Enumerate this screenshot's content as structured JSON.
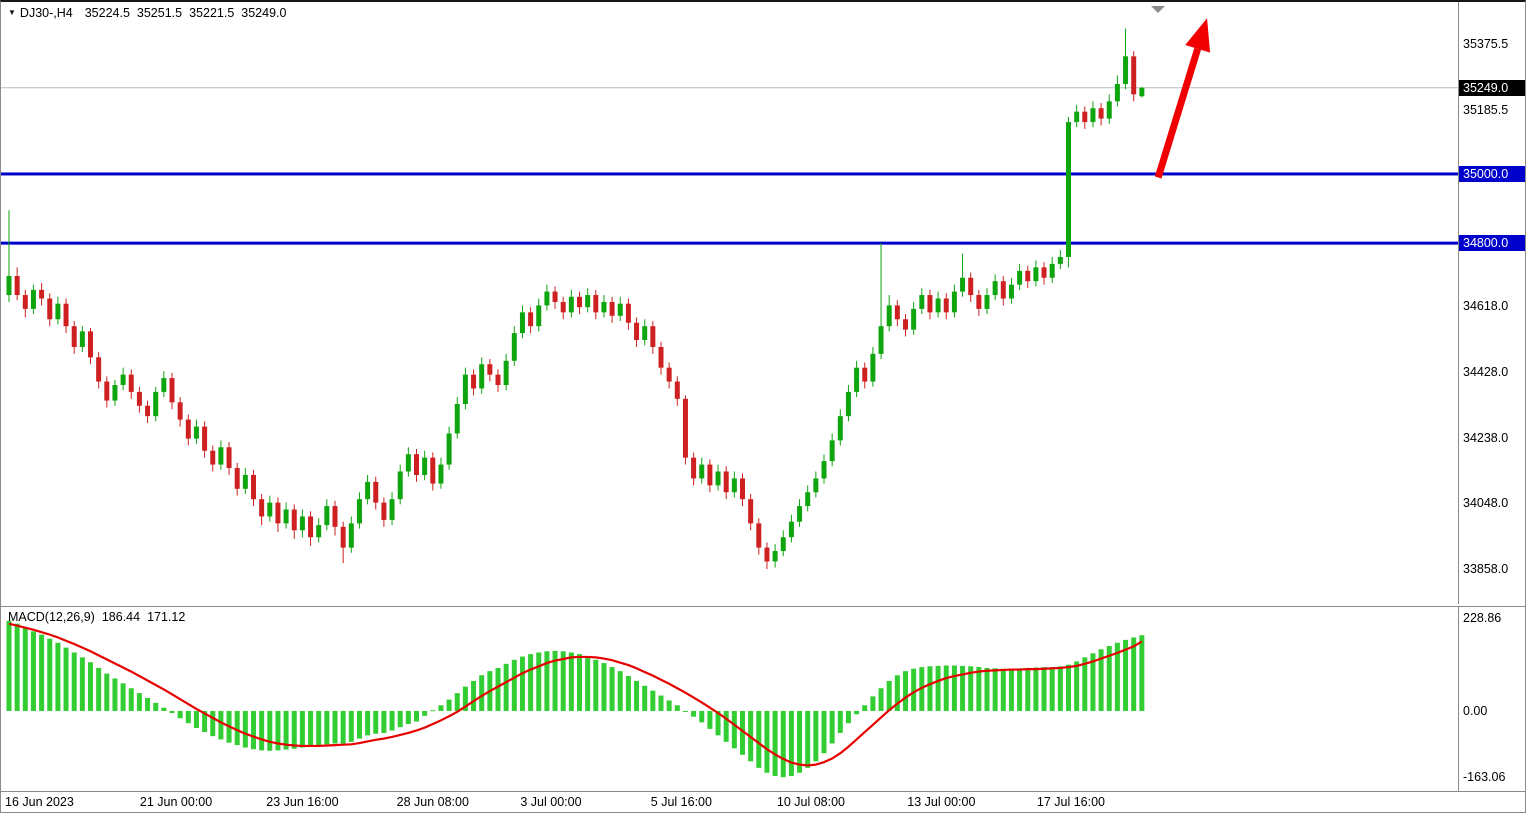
{
  "header": {
    "expand_icon": "▼",
    "instrument": "DJ30-,H4",
    "open": "35224.5",
    "high": "35251.5",
    "low": "35221.5",
    "close": "35249.0"
  },
  "colors": {
    "up": "#0FA50F",
    "down": "#CE2020",
    "macd_bar": "#32CD32",
    "signal": "#E60000",
    "level": "#0000CD",
    "arrow": "#F00000",
    "current_line": "#B8BEC4",
    "current_box_bg": "#000000",
    "shift_marker": "#8C8C8C",
    "axis_text": "#000000"
  },
  "price_axis": {
    "labels": [
      {
        "text": "35375.5",
        "value": 35375.5
      },
      {
        "text": "35185.5",
        "value": 35185.5
      },
      {
        "text": "34618.0",
        "value": 34618.0
      },
      {
        "text": "34428.0",
        "value": 34428.0
      },
      {
        "text": "34238.0",
        "value": 34238.0
      },
      {
        "text": "34048.0",
        "value": 34048.0
      },
      {
        "text": "33858.0",
        "value": 33858.0
      }
    ],
    "current": {
      "text": "35249.0",
      "value": 35249.0
    },
    "levels": [
      {
        "text": "35000.0",
        "value": 35000.0
      },
      {
        "text": "34800.0",
        "value": 34800.0
      }
    ]
  },
  "macd_panel": {
    "label": "MACD(12,26,9)",
    "macd_value": "186.44",
    "signal_value": "171.12",
    "axis": [
      {
        "text": "228.86",
        "value": 228.86
      },
      {
        "text": "0.00",
        "value": 0
      },
      {
        "text": "-163.06",
        "value": -163.06
      }
    ]
  },
  "chart_data": [
    {
      "type": "candlestick",
      "symbol": "DJ30-",
      "timeframe": "H4",
      "ylim": [
        33757,
        35497
      ],
      "bar_start_x": 8,
      "bar_spacing": 8.15,
      "current_price": 35249.0,
      "levels": [
        35000.0,
        34800.0
      ],
      "annotations": [
        {
          "type": "arrow",
          "color": "#F00000",
          "from_bar": 141,
          "from_price": 34990,
          "to_bar": 147,
          "to_price": 35450
        }
      ],
      "x_ticks": [
        {
          "label": "16 Jun 2023",
          "bar": 0
        },
        {
          "label": "21 Jun 00:00",
          "bar": 20.5
        },
        {
          "label": "23 Jun 16:00",
          "bar": 36
        },
        {
          "label": "28 Jun 08:00",
          "bar": 52
        },
        {
          "label": "3 Jul 00:00",
          "bar": 66.5
        },
        {
          "label": "5 Jul 16:00",
          "bar": 82.5
        },
        {
          "label": "10 Jul 08:00",
          "bar": 98.4
        },
        {
          "label": "13 Jul 00:00",
          "bar": 114.4
        },
        {
          "label": "17 Jul 16:00",
          "bar": 130.3
        }
      ],
      "candles": [
        [
          34650,
          34895,
          34630,
          34705
        ],
        [
          34705,
          34730,
          34635,
          34650
        ],
        [
          34650,
          34665,
          34585,
          34610
        ],
        [
          34610,
          34680,
          34595,
          34665
        ],
        [
          34665,
          34685,
          34620,
          34640
        ],
        [
          34640,
          34655,
          34560,
          34580
        ],
        [
          34580,
          34645,
          34565,
          34625
        ],
        [
          34625,
          34640,
          34540,
          34560
        ],
        [
          34560,
          34575,
          34480,
          34500
        ],
        [
          34500,
          34560,
          34485,
          34545
        ],
        [
          34545,
          34555,
          34450,
          34470
        ],
        [
          34470,
          34485,
          34380,
          34400
        ],
        [
          34400,
          34415,
          34325,
          34345
        ],
        [
          34345,
          34405,
          34330,
          34390
        ],
        [
          34390,
          34440,
          34375,
          34420
        ],
        [
          34420,
          34435,
          34350,
          34370
        ],
        [
          34370,
          34385,
          34310,
          34330
        ],
        [
          34330,
          34345,
          34280,
          34300
        ],
        [
          34300,
          34385,
          34285,
          34370
        ],
        [
          34370,
          34430,
          34355,
          34410
        ],
        [
          34410,
          34425,
          34320,
          34340
        ],
        [
          34340,
          34355,
          34270,
          34290
        ],
        [
          34290,
          34305,
          34215,
          34235
        ],
        [
          34235,
          34290,
          34220,
          34270
        ],
        [
          34270,
          34285,
          34180,
          34200
        ],
        [
          34200,
          34215,
          34140,
          34160
        ],
        [
          34160,
          34230,
          34145,
          34210
        ],
        [
          34210,
          34225,
          34130,
          34150
        ],
        [
          34150,
          34165,
          34070,
          34090
        ],
        [
          34090,
          34150,
          34075,
          34130
        ],
        [
          34130,
          34145,
          34040,
          34060
        ],
        [
          34060,
          34075,
          33985,
          34010
        ],
        [
          34010,
          34070,
          33995,
          34050
        ],
        [
          34050,
          34065,
          33965,
          33990
        ],
        [
          33990,
          34050,
          33975,
          34030
        ],
        [
          34030,
          34045,
          33945,
          33970
        ],
        [
          33970,
          34030,
          33950,
          34010
        ],
        [
          34010,
          34025,
          33925,
          33950
        ],
        [
          33950,
          34005,
          33935,
          33985
        ],
        [
          33985,
          34060,
          33970,
          34040
        ],
        [
          34040,
          34055,
          33955,
          33980
        ],
        [
          33980,
          33995,
          33875,
          33920
        ],
        [
          33920,
          34010,
          33905,
          33990
        ],
        [
          33990,
          34080,
          33975,
          34060
        ],
        [
          34060,
          34130,
          34045,
          34110
        ],
        [
          34110,
          34125,
          34030,
          34050
        ],
        [
          34050,
          34065,
          33980,
          34000
        ],
        [
          34000,
          34080,
          33985,
          34060
        ],
        [
          34060,
          34160,
          34045,
          34140
        ],
        [
          34140,
          34210,
          34125,
          34190
        ],
        [
          34190,
          34205,
          34110,
          34130
        ],
        [
          34130,
          34200,
          34115,
          34180
        ],
        [
          34180,
          34195,
          34085,
          34105
        ],
        [
          34105,
          34180,
          34090,
          34160
        ],
        [
          34160,
          34270,
          34145,
          34250
        ],
        [
          34250,
          34355,
          34235,
          34335
        ],
        [
          34335,
          34440,
          34320,
          34420
        ],
        [
          34420,
          34435,
          34360,
          34380
        ],
        [
          34380,
          34470,
          34365,
          34450
        ],
        [
          34450,
          34465,
          34400,
          34420
        ],
        [
          34420,
          34435,
          34370,
          34390
        ],
        [
          34390,
          34480,
          34375,
          34460
        ],
        [
          34460,
          34560,
          34445,
          34540
        ],
        [
          34540,
          34620,
          34525,
          34600
        ],
        [
          34600,
          34615,
          34540,
          34560
        ],
        [
          34560,
          34640,
          34545,
          34620
        ],
        [
          34620,
          34680,
          34605,
          34660
        ],
        [
          34660,
          34675,
          34610,
          34630
        ],
        [
          34630,
          34645,
          34580,
          34600
        ],
        [
          34600,
          34665,
          34585,
          34645
        ],
        [
          34645,
          34660,
          34595,
          34615
        ],
        [
          34615,
          34670,
          34600,
          34650
        ],
        [
          34650,
          34665,
          34580,
          34600
        ],
        [
          34600,
          34650,
          34585,
          34630
        ],
        [
          34630,
          34645,
          34570,
          34590
        ],
        [
          34590,
          34645,
          34575,
          34625
        ],
        [
          34625,
          34640,
          34550,
          34570
        ],
        [
          34570,
          34585,
          34500,
          34520
        ],
        [
          34520,
          34580,
          34505,
          34560
        ],
        [
          34560,
          34575,
          34480,
          34500
        ],
        [
          34500,
          34515,
          34420,
          34440
        ],
        [
          34440,
          34455,
          34380,
          34400
        ],
        [
          34400,
          34415,
          34330,
          34350
        ],
        [
          34350,
          34360,
          34160,
          34180
        ],
        [
          34180,
          34195,
          34100,
          34120
        ],
        [
          34120,
          34180,
          34105,
          34160
        ],
        [
          34160,
          34175,
          34080,
          34100
        ],
        [
          34100,
          34160,
          34085,
          34140
        ],
        [
          34140,
          34155,
          34060,
          34080
        ],
        [
          34080,
          34140,
          34065,
          34120
        ],
        [
          34120,
          34135,
          34040,
          34060
        ],
        [
          34060,
          34075,
          33970,
          33990
        ],
        [
          33990,
          34005,
          33900,
          33920
        ],
        [
          33920,
          33935,
          33858,
          33880
        ],
        [
          33880,
          33930,
          33862,
          33910
        ],
        [
          33910,
          33970,
          33895,
          33950
        ],
        [
          33950,
          34015,
          33935,
          33995
        ],
        [
          33995,
          34060,
          33980,
          34040
        ],
        [
          34040,
          34100,
          34025,
          34080
        ],
        [
          34080,
          34140,
          34065,
          34120
        ],
        [
          34120,
          34190,
          34105,
          34170
        ],
        [
          34170,
          34250,
          34155,
          34230
        ],
        [
          34230,
          34320,
          34215,
          34300
        ],
        [
          34300,
          34390,
          34285,
          34370
        ],
        [
          34370,
          34460,
          34355,
          34440
        ],
        [
          34440,
          34455,
          34380,
          34400
        ],
        [
          34400,
          34500,
          34385,
          34480
        ],
        [
          34480,
          34800,
          34465,
          34560
        ],
        [
          34560,
          34650,
          34545,
          34620
        ],
        [
          34620,
          34635,
          34560,
          34580
        ],
        [
          34580,
          34595,
          34530,
          34550
        ],
        [
          34550,
          34630,
          34535,
          34610
        ],
        [
          34610,
          34670,
          34595,
          34650
        ],
        [
          34650,
          34665,
          34580,
          34600
        ],
        [
          34600,
          34660,
          34585,
          34640
        ],
        [
          34640,
          34655,
          34580,
          34600
        ],
        [
          34600,
          34680,
          34585,
          34660
        ],
        [
          34660,
          34770,
          34645,
          34700
        ],
        [
          34700,
          34715,
          34630,
          34650
        ],
        [
          34650,
          34665,
          34590,
          34610
        ],
        [
          34610,
          34670,
          34595,
          34650
        ],
        [
          34650,
          34710,
          34635,
          34690
        ],
        [
          34690,
          34705,
          34620,
          34640
        ],
        [
          34640,
          34700,
          34625,
          34680
        ],
        [
          34680,
          34740,
          34665,
          34720
        ],
        [
          34720,
          34735,
          34670,
          34690
        ],
        [
          34690,
          34750,
          34675,
          34730
        ],
        [
          34730,
          34745,
          34680,
          34700
        ],
        [
          34700,
          34760,
          34685,
          34740
        ],
        [
          34740,
          34780,
          34725,
          34760
        ],
        [
          34760,
          35165,
          34730,
          35150
        ],
        [
          35150,
          35200,
          35135,
          35180
        ],
        [
          35180,
          35195,
          35130,
          35150
        ],
        [
          35150,
          35210,
          35135,
          35190
        ],
        [
          35190,
          35205,
          35140,
          35160
        ],
        [
          35160,
          35230,
          35145,
          35210
        ],
        [
          35210,
          35285,
          35195,
          35260
        ],
        [
          35260,
          35420,
          35245,
          35340
        ],
        [
          35340,
          35355,
          35210,
          35230
        ],
        [
          35224.5,
          35251.5,
          35221.5,
          35249.0
        ]
      ]
    },
    {
      "type": "bar+line",
      "name": "MACD(12,26,9)",
      "ylim": [
        -197,
        256
      ],
      "histogram": [
        222,
        215,
        205,
        196,
        188,
        178,
        168,
        156,
        144,
        132,
        120,
        106,
        92,
        80,
        68,
        56,
        44,
        32,
        20,
        8,
        -5,
        -18,
        -30,
        -42,
        -52,
        -62,
        -70,
        -78,
        -84,
        -90,
        -94,
        -97,
        -98,
        -97,
        -95,
        -93,
        -90,
        -88,
        -86,
        -82,
        -80,
        -80,
        -76,
        -68,
        -60,
        -56,
        -54,
        -48,
        -40,
        -32,
        -26,
        -12,
        2,
        14,
        28,
        44,
        60,
        74,
        88,
        98,
        106,
        116,
        126,
        134,
        140,
        144,
        147,
        148,
        147,
        144,
        140,
        134,
        126,
        118,
        108,
        98,
        86,
        74,
        62,
        50,
        38,
        26,
        14,
        0,
        -14,
        -28,
        -44,
        -60,
        -76,
        -92,
        -108,
        -124,
        -140,
        -152,
        -160,
        -163,
        -160,
        -152,
        -140,
        -124,
        -104,
        -80,
        -54,
        -30,
        -8,
        14,
        36,
        56,
        74,
        88,
        98,
        104,
        108,
        110,
        111,
        112,
        112,
        111,
        110,
        108,
        106,
        105,
        104,
        104,
        105,
        106,
        107,
        108,
        108,
        110,
        114,
        122,
        132,
        142,
        152,
        160,
        168,
        175,
        181,
        186.44
      ],
      "signal": [
        215,
        210,
        205,
        200,
        194,
        188,
        181,
        173,
        165,
        156,
        147,
        137,
        127,
        117,
        107,
        97,
        86,
        75,
        64,
        53,
        41,
        29,
        17,
        5,
        -6,
        -17,
        -28,
        -38,
        -47,
        -56,
        -63,
        -70,
        -76,
        -80,
        -83,
        -85,
        -86,
        -86,
        -86,
        -85,
        -84,
        -83,
        -82,
        -79,
        -75,
        -71,
        -68,
        -64,
        -59,
        -54,
        -48,
        -41,
        -32,
        -23,
        -13,
        -2,
        11,
        24,
        37,
        49,
        60,
        71,
        82,
        93,
        102,
        110,
        118,
        124,
        128,
        132,
        133,
        133,
        132,
        129,
        125,
        119,
        113,
        105,
        96,
        87,
        77,
        67,
        56,
        45,
        33,
        21,
        8,
        -5,
        -19,
        -34,
        -49,
        -64,
        -79,
        -94,
        -107,
        -118,
        -127,
        -132,
        -134,
        -132,
        -126,
        -117,
        -104,
        -88,
        -70,
        -52,
        -34,
        -16,
        2,
        18,
        33,
        46,
        57,
        66,
        74,
        81,
        86,
        90,
        94,
        97,
        99,
        100,
        101,
        102,
        102,
        103,
        103,
        104,
        105,
        106,
        108,
        111,
        116,
        122,
        129,
        136,
        143,
        151,
        159,
        171.12
      ]
    }
  ]
}
